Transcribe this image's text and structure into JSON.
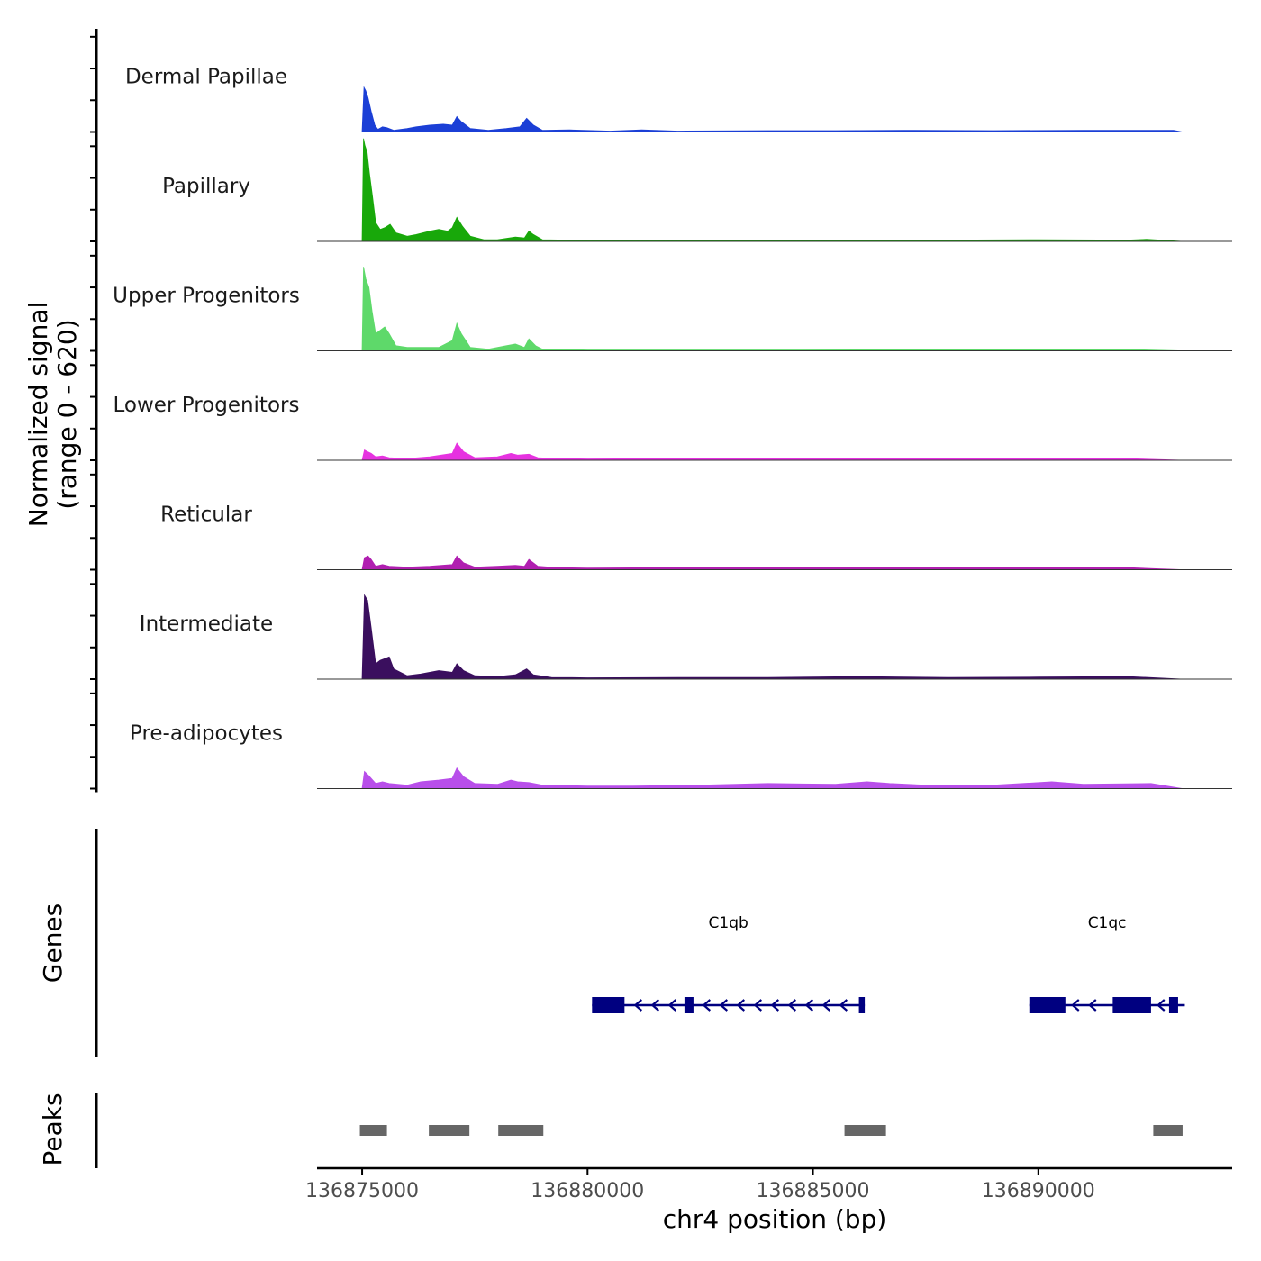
{
  "chart_data": {
    "type": "area",
    "region": "chr4",
    "x_range": [
      136874000,
      136894300
    ],
    "x_ticks": [
      {
        "value": 136875000,
        "label": "136875000"
      },
      {
        "value": 136880000,
        "label": "136880000"
      },
      {
        "value": 136885000,
        "label": "136885000"
      },
      {
        "value": 136890000,
        "label": "136890000"
      }
    ],
    "xlabel": "chr4 position (bp)",
    "ylabel_line1": "Normalized signal",
    "ylabel_line2": "(range 0 - 620)",
    "y_range": [
      0,
      620
    ],
    "genes_label": "Genes",
    "peaks_label": "Peaks",
    "colors": {
      "gene": "#000080",
      "peak": "#666666",
      "baseline": "#333333",
      "axis": "#000000"
    },
    "tracks": [
      {
        "name": "Dermal Papillae",
        "color": "#1b3fd6",
        "points": [
          [
            136875000,
            0
          ],
          [
            136875040,
            260
          ],
          [
            136875080,
            240
          ],
          [
            136875130,
            200
          ],
          [
            136875200,
            120
          ],
          [
            136875280,
            40
          ],
          [
            136875350,
            15
          ],
          [
            136875450,
            30
          ],
          [
            136875550,
            25
          ],
          [
            136875700,
            10
          ],
          [
            136876000,
            20
          ],
          [
            136876200,
            30
          ],
          [
            136876500,
            40
          ],
          [
            136876800,
            45
          ],
          [
            136877000,
            40
          ],
          [
            136877100,
            90
          ],
          [
            136877200,
            60
          ],
          [
            136877400,
            20
          ],
          [
            136877800,
            10
          ],
          [
            136878200,
            20
          ],
          [
            136878500,
            30
          ],
          [
            136878650,
            80
          ],
          [
            136878800,
            40
          ],
          [
            136879000,
            10
          ],
          [
            136879600,
            12
          ],
          [
            136880500,
            5
          ],
          [
            136881200,
            12
          ],
          [
            136882000,
            5
          ],
          [
            136884000,
            8
          ],
          [
            136885500,
            8
          ],
          [
            136887000,
            10
          ],
          [
            136889000,
            8
          ],
          [
            136891000,
            10
          ],
          [
            136892300,
            10
          ],
          [
            136893000,
            10
          ],
          [
            136893200,
            0
          ]
        ]
      },
      {
        "name": "Papillary",
        "color": "#18a80a",
        "points": [
          [
            136875000,
            0
          ],
          [
            136875030,
            600
          ],
          [
            136875060,
            560
          ],
          [
            136875110,
            520
          ],
          [
            136875160,
            400
          ],
          [
            136875230,
            260
          ],
          [
            136875300,
            110
          ],
          [
            136875400,
            70
          ],
          [
            136875500,
            80
          ],
          [
            136875620,
            100
          ],
          [
            136875750,
            50
          ],
          [
            136876000,
            30
          ],
          [
            136876200,
            40
          ],
          [
            136876500,
            60
          ],
          [
            136876700,
            70
          ],
          [
            136876900,
            60
          ],
          [
            136877000,
            80
          ],
          [
            136877100,
            140
          ],
          [
            136877220,
            90
          ],
          [
            136877400,
            30
          ],
          [
            136877700,
            10
          ],
          [
            136878000,
            10
          ],
          [
            136878400,
            25
          ],
          [
            136878600,
            20
          ],
          [
            136878700,
            60
          ],
          [
            136878800,
            40
          ],
          [
            136879000,
            10
          ],
          [
            136880000,
            5
          ],
          [
            136882000,
            6
          ],
          [
            136884000,
            6
          ],
          [
            136886000,
            8
          ],
          [
            136888000,
            8
          ],
          [
            136890000,
            10
          ],
          [
            136892000,
            8
          ],
          [
            136892400,
            12
          ],
          [
            136893200,
            0
          ]
        ]
      },
      {
        "name": "Upper Progenitors",
        "color": "#5ed96a",
        "points": [
          [
            136875000,
            0
          ],
          [
            136875030,
            490
          ],
          [
            136875080,
            420
          ],
          [
            136875150,
            370
          ],
          [
            136875220,
            230
          ],
          [
            136875300,
            100
          ],
          [
            136875400,
            120
          ],
          [
            136875500,
            140
          ],
          [
            136875600,
            100
          ],
          [
            136875750,
            30
          ],
          [
            136876000,
            20
          ],
          [
            136876300,
            20
          ],
          [
            136876700,
            20
          ],
          [
            136877000,
            60
          ],
          [
            136877100,
            160
          ],
          [
            136877200,
            100
          ],
          [
            136877400,
            20
          ],
          [
            136877800,
            10
          ],
          [
            136878200,
            30
          ],
          [
            136878400,
            40
          ],
          [
            136878600,
            20
          ],
          [
            136878700,
            70
          ],
          [
            136878850,
            30
          ],
          [
            136879000,
            10
          ],
          [
            136880000,
            5
          ],
          [
            136882000,
            5
          ],
          [
            136884000,
            5
          ],
          [
            136886000,
            6
          ],
          [
            136888000,
            8
          ],
          [
            136890000,
            10
          ],
          [
            136892000,
            8
          ],
          [
            136893200,
            0
          ]
        ]
      },
      {
        "name": "Lower Progenitors",
        "color": "#e632e0",
        "points": [
          [
            136875000,
            0
          ],
          [
            136875050,
            60
          ],
          [
            136875120,
            50
          ],
          [
            136875200,
            40
          ],
          [
            136875300,
            20
          ],
          [
            136875450,
            25
          ],
          [
            136875600,
            15
          ],
          [
            136876000,
            10
          ],
          [
            136876500,
            20
          ],
          [
            136877000,
            40
          ],
          [
            136877100,
            100
          ],
          [
            136877250,
            50
          ],
          [
            136877500,
            15
          ],
          [
            136878000,
            20
          ],
          [
            136878300,
            40
          ],
          [
            136878450,
            30
          ],
          [
            136878700,
            35
          ],
          [
            136878900,
            15
          ],
          [
            136879300,
            10
          ],
          [
            136880000,
            8
          ],
          [
            136882000,
            10
          ],
          [
            136884000,
            10
          ],
          [
            136886000,
            12
          ],
          [
            136888000,
            10
          ],
          [
            136890000,
            12
          ],
          [
            136892000,
            10
          ],
          [
            136893200,
            0
          ]
        ]
      },
      {
        "name": "Reticular",
        "color": "#b01fb0",
        "points": [
          [
            136875000,
            0
          ],
          [
            136875050,
            70
          ],
          [
            136875130,
            80
          ],
          [
            136875200,
            60
          ],
          [
            136875300,
            20
          ],
          [
            136875450,
            30
          ],
          [
            136875600,
            20
          ],
          [
            136876000,
            15
          ],
          [
            136876500,
            20
          ],
          [
            136877000,
            30
          ],
          [
            136877100,
            80
          ],
          [
            136877250,
            40
          ],
          [
            136877500,
            15
          ],
          [
            136878000,
            20
          ],
          [
            136878400,
            25
          ],
          [
            136878600,
            20
          ],
          [
            136878700,
            60
          ],
          [
            136878900,
            20
          ],
          [
            136879300,
            12
          ],
          [
            136880000,
            10
          ],
          [
            136882000,
            12
          ],
          [
            136884000,
            12
          ],
          [
            136886000,
            15
          ],
          [
            136888000,
            12
          ],
          [
            136890000,
            15
          ],
          [
            136892000,
            12
          ],
          [
            136893200,
            0
          ]
        ]
      },
      {
        "name": "Intermediate",
        "color": "#3a0f5e",
        "points": [
          [
            136875000,
            0
          ],
          [
            136875050,
            490
          ],
          [
            136875120,
            460
          ],
          [
            136875200,
            300
          ],
          [
            136875300,
            90
          ],
          [
            136875400,
            110
          ],
          [
            136875500,
            120
          ],
          [
            136875600,
            130
          ],
          [
            136875700,
            60
          ],
          [
            136876000,
            20
          ],
          [
            136876300,
            30
          ],
          [
            136876700,
            50
          ],
          [
            136877000,
            40
          ],
          [
            136877100,
            90
          ],
          [
            136877250,
            50
          ],
          [
            136877500,
            20
          ],
          [
            136878000,
            15
          ],
          [
            136878400,
            25
          ],
          [
            136878650,
            60
          ],
          [
            136878800,
            25
          ],
          [
            136879200,
            10
          ],
          [
            136880000,
            8
          ],
          [
            136882000,
            10
          ],
          [
            136884000,
            10
          ],
          [
            136886000,
            15
          ],
          [
            136888000,
            10
          ],
          [
            136890000,
            12
          ],
          [
            136892000,
            15
          ],
          [
            136893200,
            0
          ]
        ]
      },
      {
        "name": "Pre-adipocytes",
        "color": "#b84fea",
        "points": [
          [
            136875000,
            0
          ],
          [
            136875050,
            100
          ],
          [
            136875130,
            80
          ],
          [
            136875200,
            60
          ],
          [
            136875300,
            30
          ],
          [
            136875450,
            40
          ],
          [
            136875600,
            30
          ],
          [
            136876000,
            20
          ],
          [
            136876300,
            40
          ],
          [
            136876700,
            50
          ],
          [
            136877000,
            60
          ],
          [
            136877100,
            120
          ],
          [
            136877250,
            70
          ],
          [
            136877500,
            30
          ],
          [
            136878000,
            25
          ],
          [
            136878300,
            50
          ],
          [
            136878450,
            40
          ],
          [
            136878700,
            35
          ],
          [
            136879000,
            20
          ],
          [
            136880000,
            15
          ],
          [
            136881000,
            15
          ],
          [
            136882500,
            20
          ],
          [
            136884000,
            30
          ],
          [
            136885500,
            25
          ],
          [
            136886200,
            40
          ],
          [
            136886700,
            30
          ],
          [
            136887500,
            20
          ],
          [
            136889000,
            20
          ],
          [
            136890300,
            40
          ],
          [
            136891000,
            25
          ],
          [
            136892500,
            30
          ],
          [
            136893200,
            0
          ]
        ]
      }
    ],
    "genes": [
      {
        "name": "C1qb",
        "strand": "-",
        "start": 136880100,
        "end": 136886150,
        "exons": [
          [
            136880100,
            136880820
          ],
          [
            136882150,
            136882350
          ],
          [
            136886020,
            136886150
          ]
        ]
      },
      {
        "name": "C1qc",
        "strand": "-",
        "start": 136889800,
        "end": 136893250,
        "exons": [
          [
            136889800,
            136890600
          ],
          [
            136891650,
            136892500
          ],
          [
            136892900,
            136893100
          ]
        ]
      }
    ],
    "peaks": [
      [
        136874950,
        136875550
      ],
      [
        136876480,
        136877380
      ],
      [
        136878020,
        136879020
      ],
      [
        136885700,
        136886620
      ],
      [
        136892550,
        136893200
      ]
    ]
  }
}
